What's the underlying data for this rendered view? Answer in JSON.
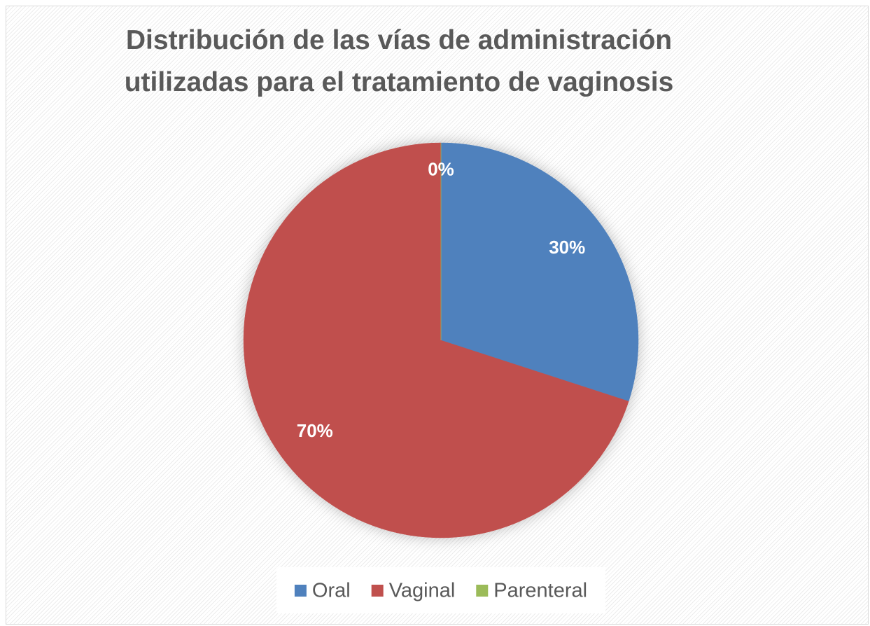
{
  "chart_data": {
    "type": "pie",
    "title": "Distribución de las vías de administración utilizadas para el tratamiento de vaginosis",
    "categories": [
      "Oral",
      "Vaginal",
      "Parenteral"
    ],
    "values": [
      30,
      70,
      0
    ],
    "value_labels": [
      "30%",
      "70%",
      "0%"
    ],
    "colors": [
      "#4f81bd",
      "#c0504d",
      "#9bbb59"
    ],
    "legend": "bottom"
  }
}
